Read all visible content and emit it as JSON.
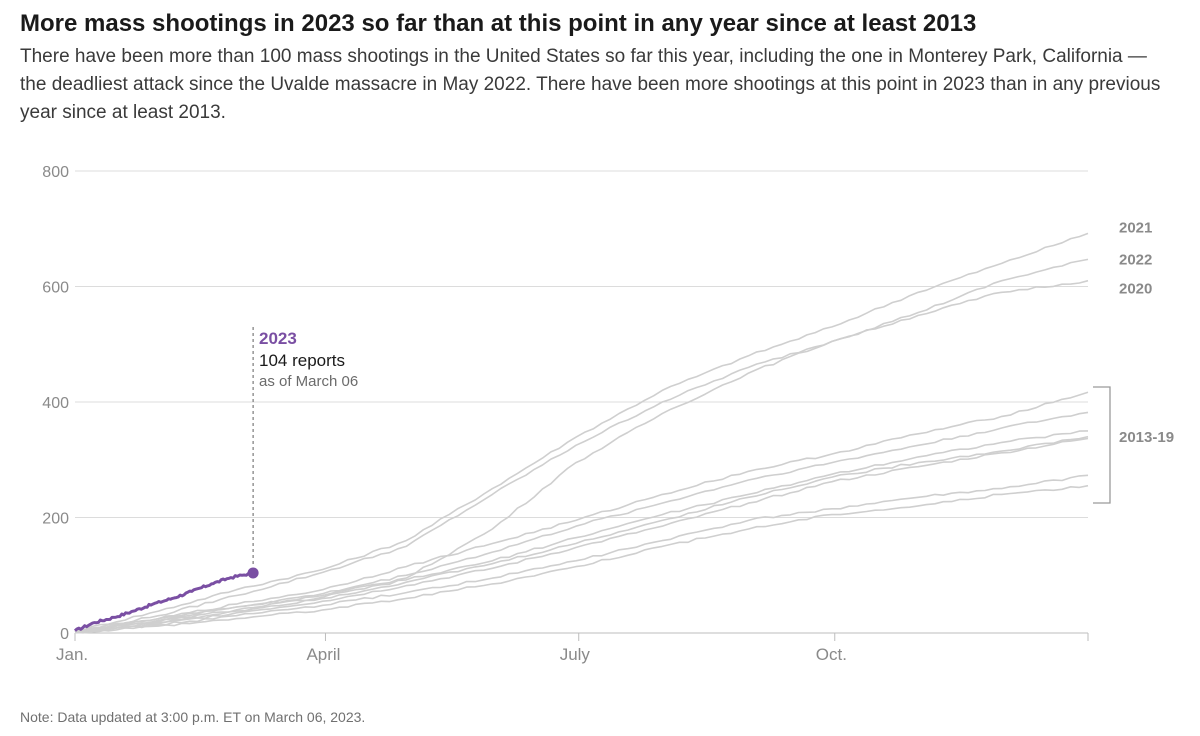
{
  "header": {
    "title": "More mass shootings in 2023 so far than at this point in any year since at least 2013",
    "subtitle": "There have been more than 100 mass shootings in the United States so far this year, including the one in Monterey Park, California — the deadliest attack since the Uvalde massacre in May 2022. There have been more shootings at this point in 2023 than in any previous year since at least 2013."
  },
  "note": "Note: Data updated at 3:00 p.m. ET on March 06, 2023.",
  "annotation": {
    "title": "2023",
    "value": "104 reports",
    "date": "as of March 06"
  },
  "labels": {
    "group_2013_19": "2013-19"
  },
  "colors": {
    "highlight": "#7a4fa3",
    "background_series": "#cfcfcf",
    "grid": "#dcdcdc"
  },
  "chart_data": {
    "type": "line",
    "title": "More mass shootings in 2023 so far than at this point in any year since at least 2013",
    "xlabel": "",
    "ylabel": "",
    "x_unit": "day of year",
    "xlim": [
      1,
      365
    ],
    "ylim": [
      0,
      800
    ],
    "yticks": [
      0,
      200,
      400,
      600,
      800
    ],
    "xticks": [
      {
        "label": "Jan.",
        "day": 1
      },
      {
        "label": "April",
        "day": 91
      },
      {
        "label": "July",
        "day": 182
      },
      {
        "label": "Oct.",
        "day": 274
      }
    ],
    "grid": true,
    "highlight": "2023",
    "series": [
      {
        "name": "2023",
        "x": [
          1,
          8,
          15,
          22,
          29,
          36,
          43,
          50,
          57,
          65
        ],
        "values": [
          4,
          18,
          27,
          38,
          50,
          60,
          72,
          85,
          96,
          104
        ]
      },
      {
        "name": "2021",
        "x": [
          1,
          31,
          59,
          90,
          120,
          151,
          181,
          212,
          243,
          273,
          304,
          334,
          365
        ],
        "values": [
          3,
          38,
          75,
          110,
          160,
          250,
          339,
          420,
          480,
          530,
          590,
          640,
          692
        ]
      },
      {
        "name": "2022",
        "x": [
          1,
          31,
          59,
          90,
          120,
          151,
          181,
          212,
          243,
          273,
          304,
          334,
          365
        ],
        "values": [
          2,
          30,
          65,
          105,
          150,
          240,
          325,
          400,
          460,
          505,
          555,
          610,
          647
        ]
      },
      {
        "name": "2020",
        "x": [
          1,
          31,
          59,
          90,
          120,
          151,
          181,
          212,
          243,
          273,
          304,
          334,
          365
        ],
        "values": [
          2,
          25,
          45,
          65,
          95,
          180,
          295,
          380,
          450,
          505,
          550,
          590,
          610
        ]
      },
      {
        "x": [
          1,
          31,
          59,
          90,
          120,
          151,
          181,
          212,
          243,
          273,
          304,
          334,
          365
        ],
        "values": [
          2,
          25,
          50,
          75,
          115,
          155,
          195,
          240,
          280,
          310,
          345,
          375,
          417
        ]
      },
      {
        "x": [
          1,
          31,
          59,
          90,
          120,
          151,
          181,
          212,
          243,
          273,
          304,
          334,
          365
        ],
        "values": [
          2,
          22,
          45,
          68,
          100,
          140,
          185,
          225,
          265,
          295,
          325,
          355,
          382
        ]
      },
      {
        "x": [
          1,
          31,
          59,
          90,
          120,
          151,
          181,
          212,
          243,
          273,
          304,
          334,
          365
        ],
        "values": [
          1,
          20,
          40,
          62,
          92,
          125,
          165,
          205,
          240,
          275,
          305,
          330,
          350
        ]
      },
      {
        "x": [
          1,
          31,
          59,
          90,
          120,
          151,
          181,
          212,
          243,
          273,
          304,
          334,
          365
        ],
        "values": [
          1,
          18,
          38,
          60,
          88,
          120,
          155,
          195,
          235,
          270,
          295,
          315,
          340
        ]
      },
      {
        "x": [
          1,
          31,
          59,
          90,
          120,
          151,
          181,
          212,
          243,
          273,
          304,
          334,
          365
        ],
        "values": [
          1,
          16,
          35,
          55,
          82,
          112,
          148,
          185,
          225,
          262,
          288,
          312,
          337
        ]
      },
      {
        "x": [
          1,
          31,
          59,
          90,
          120,
          151,
          181,
          212,
          243,
          273,
          304,
          334,
          365
        ],
        "values": [
          1,
          14,
          30,
          48,
          70,
          95,
          125,
          160,
          195,
          215,
          235,
          250,
          273
        ]
      },
      {
        "x": [
          1,
          31,
          59,
          90,
          120,
          151,
          181,
          212,
          243,
          273,
          304,
          334,
          365
        ],
        "values": [
          1,
          12,
          25,
          40,
          60,
          85,
          115,
          150,
          180,
          205,
          220,
          240,
          255
        ]
      }
    ]
  }
}
